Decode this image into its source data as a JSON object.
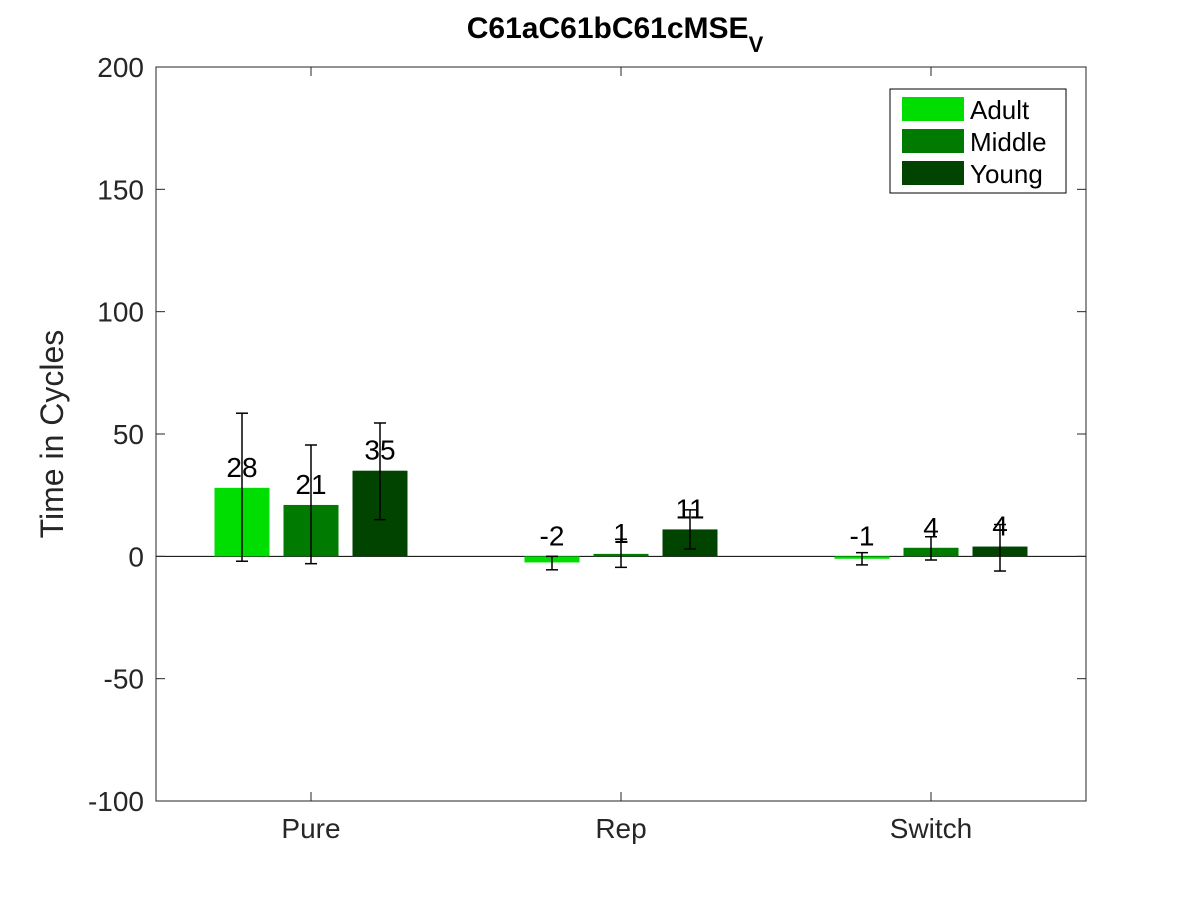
{
  "chart_data": {
    "type": "bar",
    "title": "C61aC61bC61cMSE",
    "title_subscript": "V",
    "xlabel": "",
    "ylabel": "Time in Cycles",
    "categories": [
      "Pure",
      "Rep",
      "Switch"
    ],
    "ylim": [
      -100,
      200
    ],
    "yticks": [
      -100,
      -50,
      0,
      50,
      100,
      150,
      200
    ],
    "ytick_labels": [
      "-100",
      "-50",
      "0",
      "50",
      "100",
      "150",
      "200"
    ],
    "grid": false,
    "legend_position": "top-right",
    "series": [
      {
        "name": "Adult",
        "color": "#00dd00",
        "values": [
          28,
          -2.5,
          -1
        ],
        "labels": [
          "28",
          "-2",
          "-1"
        ],
        "error_low": [
          -2,
          -5.5,
          -3.5
        ],
        "error_high": [
          58.5,
          0,
          1.5
        ]
      },
      {
        "name": "Middle",
        "color": "#007a00",
        "values": [
          21,
          1,
          3.5
        ],
        "labels": [
          "21",
          "1",
          "4"
        ],
        "error_low": [
          -3,
          -4.5,
          -1.5
        ],
        "error_high": [
          45.5,
          7,
          8
        ]
      },
      {
        "name": "Young",
        "color": "#004400",
        "values": [
          35,
          11,
          4
        ],
        "labels": [
          "35",
          "11",
          "4"
        ],
        "error_low": [
          15,
          3,
          -6
        ],
        "error_high": [
          54.5,
          19,
          13
        ]
      }
    ]
  }
}
